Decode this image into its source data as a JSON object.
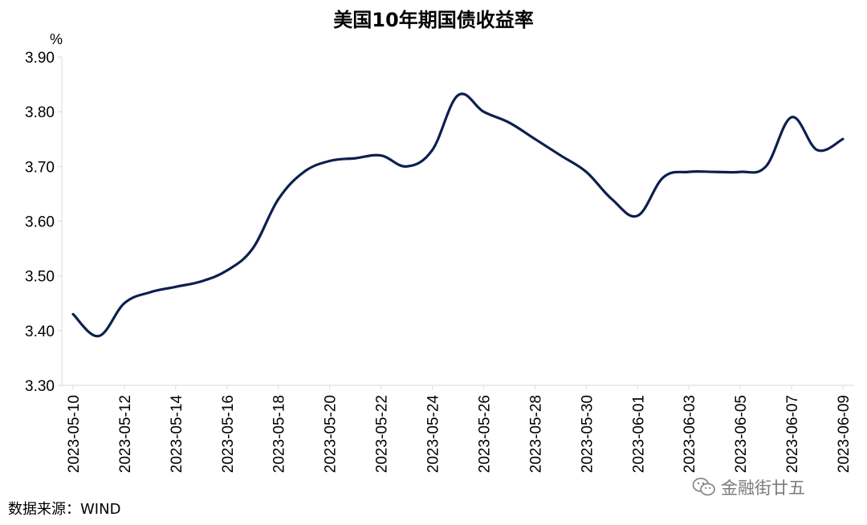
{
  "chart_data": {
    "type": "line",
    "title": "美国10年期国债收益率",
    "ylabel": "%",
    "xlabel": "",
    "ylim": [
      3.3,
      3.9
    ],
    "yticks": [
      "3.30",
      "3.40",
      "3.50",
      "3.60",
      "3.70",
      "3.80",
      "3.90"
    ],
    "xticks": [
      "2023-05-10",
      "2023-05-12",
      "2023-05-14",
      "2023-05-16",
      "2023-05-18",
      "2023-05-20",
      "2023-05-22",
      "2023-05-24",
      "2023-05-26",
      "2023-05-28",
      "2023-05-30",
      "2023-06-01",
      "2023-06-03",
      "2023-06-05",
      "2023-06-07",
      "2023-06-09"
    ],
    "x": [
      "2023-05-10",
      "2023-05-11",
      "2023-05-12",
      "2023-05-13",
      "2023-05-14",
      "2023-05-15",
      "2023-05-16",
      "2023-05-17",
      "2023-05-18",
      "2023-05-19",
      "2023-05-20",
      "2023-05-21",
      "2023-05-22",
      "2023-05-23",
      "2023-05-24",
      "2023-05-25",
      "2023-05-26",
      "2023-05-27",
      "2023-05-28",
      "2023-05-29",
      "2023-05-30",
      "2023-05-31",
      "2023-06-01",
      "2023-06-02",
      "2023-06-03",
      "2023-06-04",
      "2023-06-05",
      "2023-06-06",
      "2023-06-07",
      "2023-06-08",
      "2023-06-09"
    ],
    "series": [
      {
        "values": [
          3.43,
          3.39,
          3.45,
          3.47,
          3.48,
          3.49,
          3.51,
          3.55,
          3.64,
          3.69,
          3.71,
          3.715,
          3.72,
          3.7,
          3.73,
          3.83,
          3.8,
          3.78,
          3.75,
          3.72,
          3.69,
          3.64,
          3.61,
          3.68,
          3.69,
          3.69,
          3.69,
          3.7,
          3.79,
          3.73,
          3.75
        ],
        "color": "#0d1f4f"
      }
    ],
    "grid": false,
    "legend": "none"
  },
  "source_label": "数据来源：WIND",
  "watermark": {
    "icon": "wechat-icon",
    "text": "金融街廿五"
  }
}
